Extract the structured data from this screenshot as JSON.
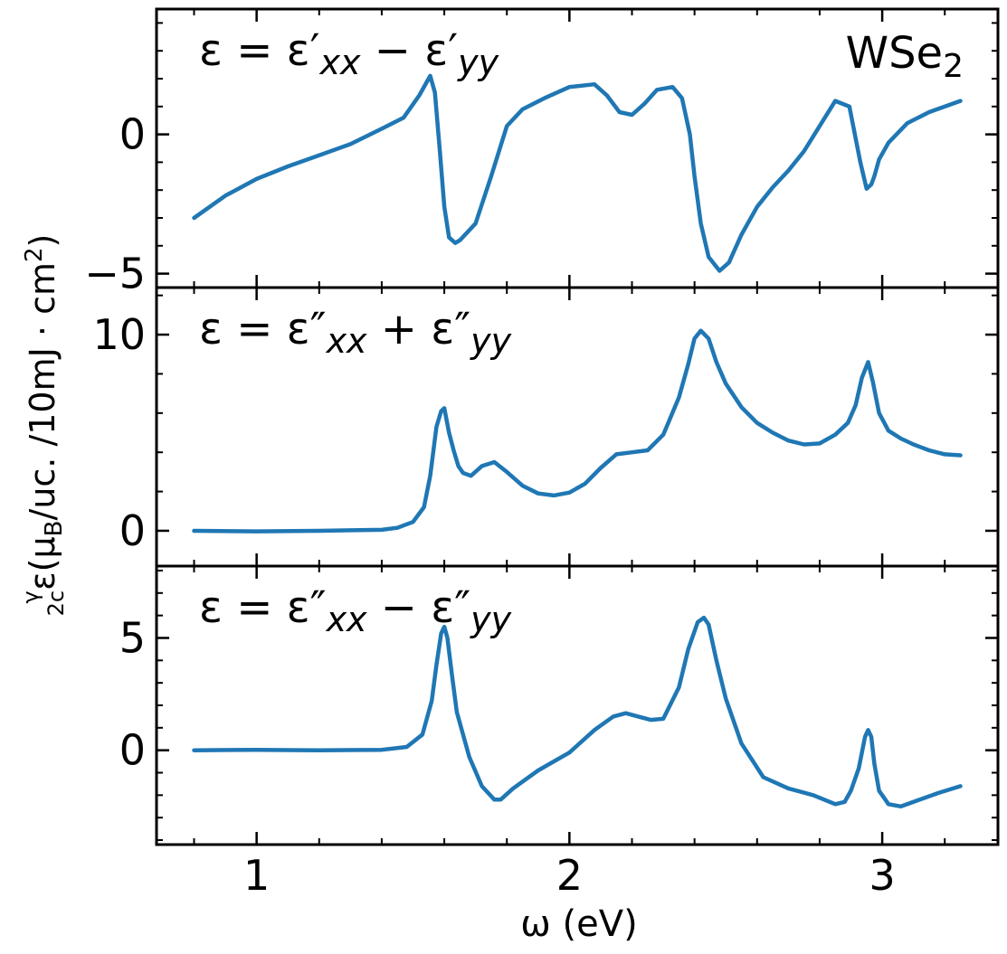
{
  "chart_data": {
    "type": "line",
    "material": "WSe",
    "material_subscript": "2",
    "xlabel": "ω (eV)",
    "ylabel": "γ/2c ε(μ_B/uc. /10mJ·cm²)",
    "ylabel_frac_num": "γ",
    "ylabel_frac_den": "2c",
    "ylabel_main": "ε(μ",
    "ylabel_sub": "B",
    "ylabel_tail": "/uc. /10mJ · cm",
    "ylabel_sup": "2",
    "ylabel_close": ")",
    "xlim": [
      0.68,
      3.37
    ],
    "xticks": [
      1,
      2,
      3
    ],
    "xtick_labels": [
      "1",
      "2",
      "3"
    ],
    "color": "#1f77b4",
    "panels": [
      {
        "name": "real-part-difference",
        "annotation": "ε = ε′xx − ε′yy",
        "ann": [
          {
            "t": "ε = ε′",
            "s": ""
          },
          {
            "t": "xx",
            "s": "sub"
          },
          {
            "t": " − ε′",
            "s": ""
          },
          {
            "t": "yy",
            "s": "sub"
          }
        ],
        "ylim": [
          -5.5,
          4.5
        ],
        "yticks": [
          0,
          -5
        ],
        "ytick_labels": [
          "0",
          "−5"
        ],
        "x": [
          0.8,
          0.9,
          1.0,
          1.1,
          1.2,
          1.3,
          1.4,
          1.47,
          1.52,
          1.555,
          1.57,
          1.585,
          1.6,
          1.615,
          1.635,
          1.65,
          1.7,
          1.75,
          1.8,
          1.85,
          1.92,
          2.0,
          2.08,
          2.12,
          2.16,
          2.2,
          2.24,
          2.28,
          2.33,
          2.36,
          2.385,
          2.4,
          2.42,
          2.445,
          2.48,
          2.51,
          2.55,
          2.6,
          2.65,
          2.7,
          2.75,
          2.8,
          2.85,
          2.895,
          2.93,
          2.95,
          2.965,
          2.975,
          2.99,
          3.02,
          3.08,
          3.15,
          3.25
        ],
        "y": [
          -3.0,
          -2.2,
          -1.6,
          -1.15,
          -0.75,
          -0.35,
          0.2,
          0.6,
          1.4,
          2.1,
          1.5,
          -0.5,
          -2.6,
          -3.7,
          -3.9,
          -3.8,
          -3.2,
          -1.5,
          0.3,
          0.9,
          1.3,
          1.7,
          1.8,
          1.4,
          0.8,
          0.7,
          1.1,
          1.6,
          1.7,
          1.3,
          0.0,
          -1.5,
          -3.2,
          -4.4,
          -4.9,
          -4.6,
          -3.6,
          -2.6,
          -1.9,
          -1.3,
          -0.6,
          0.3,
          1.2,
          1.0,
          -1.0,
          -1.95,
          -1.8,
          -1.5,
          -0.9,
          -0.3,
          0.4,
          0.8,
          1.2
        ]
      },
      {
        "name": "imag-part-sum",
        "annotation": "ε = ε″xx + ε″yy",
        "ann": [
          {
            "t": "ε = ε″",
            "s": ""
          },
          {
            "t": "xx",
            "s": "sub"
          },
          {
            "t": " + ε″",
            "s": ""
          },
          {
            "t": "yy",
            "s": "sub"
          }
        ],
        "ylim": [
          -1.8,
          12.4
        ],
        "yticks": [
          0,
          10
        ],
        "ytick_labels": [
          "0",
          "10"
        ],
        "x": [
          0.8,
          1.0,
          1.2,
          1.4,
          1.45,
          1.5,
          1.535,
          1.555,
          1.575,
          1.59,
          1.6,
          1.615,
          1.63,
          1.645,
          1.66,
          1.685,
          1.72,
          1.76,
          1.8,
          1.85,
          1.9,
          1.95,
          2.0,
          2.05,
          2.1,
          2.15,
          2.2,
          2.25,
          2.3,
          2.35,
          2.38,
          2.4,
          2.42,
          2.445,
          2.47,
          2.5,
          2.55,
          2.6,
          2.65,
          2.7,
          2.75,
          2.8,
          2.85,
          2.89,
          2.915,
          2.935,
          2.955,
          2.97,
          2.99,
          3.02,
          3.06,
          3.1,
          3.15,
          3.2,
          3.25
        ],
        "y": [
          0,
          -0.03,
          0,
          0.05,
          0.15,
          0.45,
          1.2,
          2.8,
          5.3,
          6.1,
          6.25,
          5.0,
          4.1,
          3.3,
          2.95,
          2.8,
          3.3,
          3.5,
          3.0,
          2.3,
          1.9,
          1.8,
          1.95,
          2.4,
          3.2,
          3.9,
          4.0,
          4.1,
          4.9,
          6.8,
          8.5,
          9.8,
          10.2,
          9.8,
          8.6,
          7.5,
          6.3,
          5.5,
          5.0,
          4.6,
          4.4,
          4.45,
          4.9,
          5.5,
          6.4,
          7.8,
          8.6,
          7.6,
          6.0,
          5.1,
          4.7,
          4.4,
          4.1,
          3.9,
          3.85
        ]
      },
      {
        "name": "imag-part-difference",
        "annotation": "ε = ε″xx − ε″yy",
        "ann": [
          {
            "t": "ε = ε″",
            "s": ""
          },
          {
            "t": "xx",
            "s": "sub"
          },
          {
            "t": " − ε″",
            "s": ""
          },
          {
            "t": "yy",
            "s": "sub"
          }
        ],
        "ylim": [
          -4.2,
          8.2
        ],
        "yticks": [
          0,
          5
        ],
        "ytick_labels": [
          "0",
          "5"
        ],
        "x": [
          0.8,
          1.0,
          1.2,
          1.4,
          1.48,
          1.53,
          1.56,
          1.575,
          1.59,
          1.6,
          1.61,
          1.625,
          1.64,
          1.68,
          1.72,
          1.76,
          1.78,
          1.82,
          1.9,
          2.0,
          2.08,
          2.14,
          2.18,
          2.22,
          2.26,
          2.3,
          2.35,
          2.38,
          2.41,
          2.43,
          2.445,
          2.47,
          2.5,
          2.55,
          2.62,
          2.7,
          2.78,
          2.85,
          2.88,
          2.9,
          2.925,
          2.945,
          2.955,
          2.965,
          2.975,
          2.99,
          3.02,
          3.06,
          3.12,
          3.18,
          3.25
        ],
        "y": [
          0,
          0.02,
          0,
          0.02,
          0.15,
          0.7,
          2.2,
          3.8,
          5.2,
          5.5,
          5.0,
          3.3,
          1.7,
          -0.3,
          -1.6,
          -2.2,
          -2.2,
          -1.7,
          -0.9,
          -0.1,
          0.9,
          1.5,
          1.65,
          1.5,
          1.35,
          1.4,
          2.8,
          4.5,
          5.7,
          5.9,
          5.6,
          4.0,
          2.3,
          0.3,
          -1.2,
          -1.7,
          -2.0,
          -2.4,
          -2.3,
          -1.8,
          -0.8,
          0.6,
          0.9,
          0.6,
          -0.6,
          -1.8,
          -2.4,
          -2.5,
          -2.2,
          -1.9,
          -1.6
        ]
      }
    ]
  }
}
